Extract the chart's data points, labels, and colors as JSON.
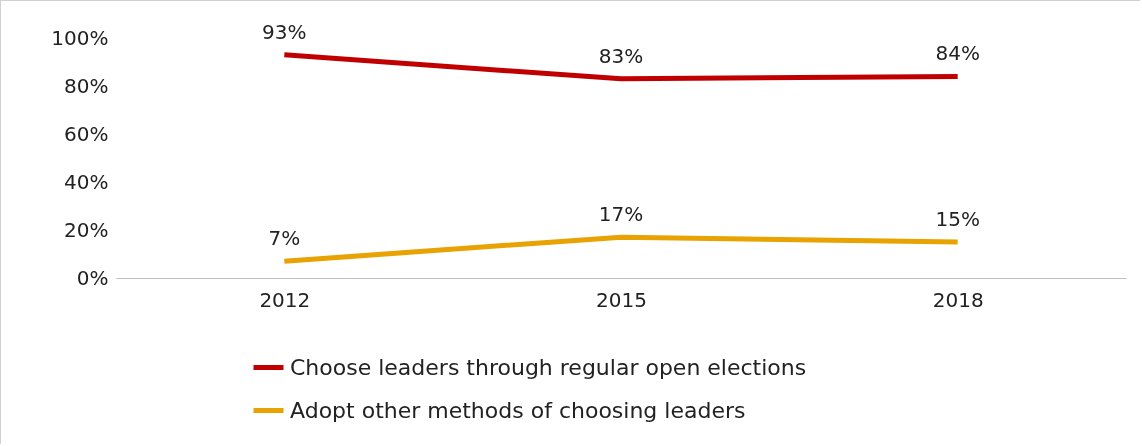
{
  "chart_data": {
    "type": "line",
    "categories": [
      "2012",
      "2015",
      "2018"
    ],
    "series": [
      {
        "name": "Choose leaders through regular open elections",
        "color": "#c00000",
        "values": [
          93,
          83,
          84
        ],
        "value_labels": [
          "93%",
          "83%",
          "84%"
        ]
      },
      {
        "name": "Adopt other methods of choosing leaders",
        "color": "#e8a202",
        "values": [
          7,
          17,
          15
        ],
        "value_labels": [
          "7%",
          "17%",
          "15%"
        ]
      }
    ],
    "ylim": [
      0,
      100
    ],
    "yticks": [
      {
        "value": 0,
        "label": "0%"
      },
      {
        "value": 20,
        "label": "20%"
      },
      {
        "value": 40,
        "label": "40%"
      },
      {
        "value": 60,
        "label": "60%"
      },
      {
        "value": 80,
        "label": "80%"
      },
      {
        "value": 100,
        "label": "100%"
      }
    ],
    "grid": false,
    "legend": "bottom",
    "marker": "none",
    "line_style": "solid"
  }
}
